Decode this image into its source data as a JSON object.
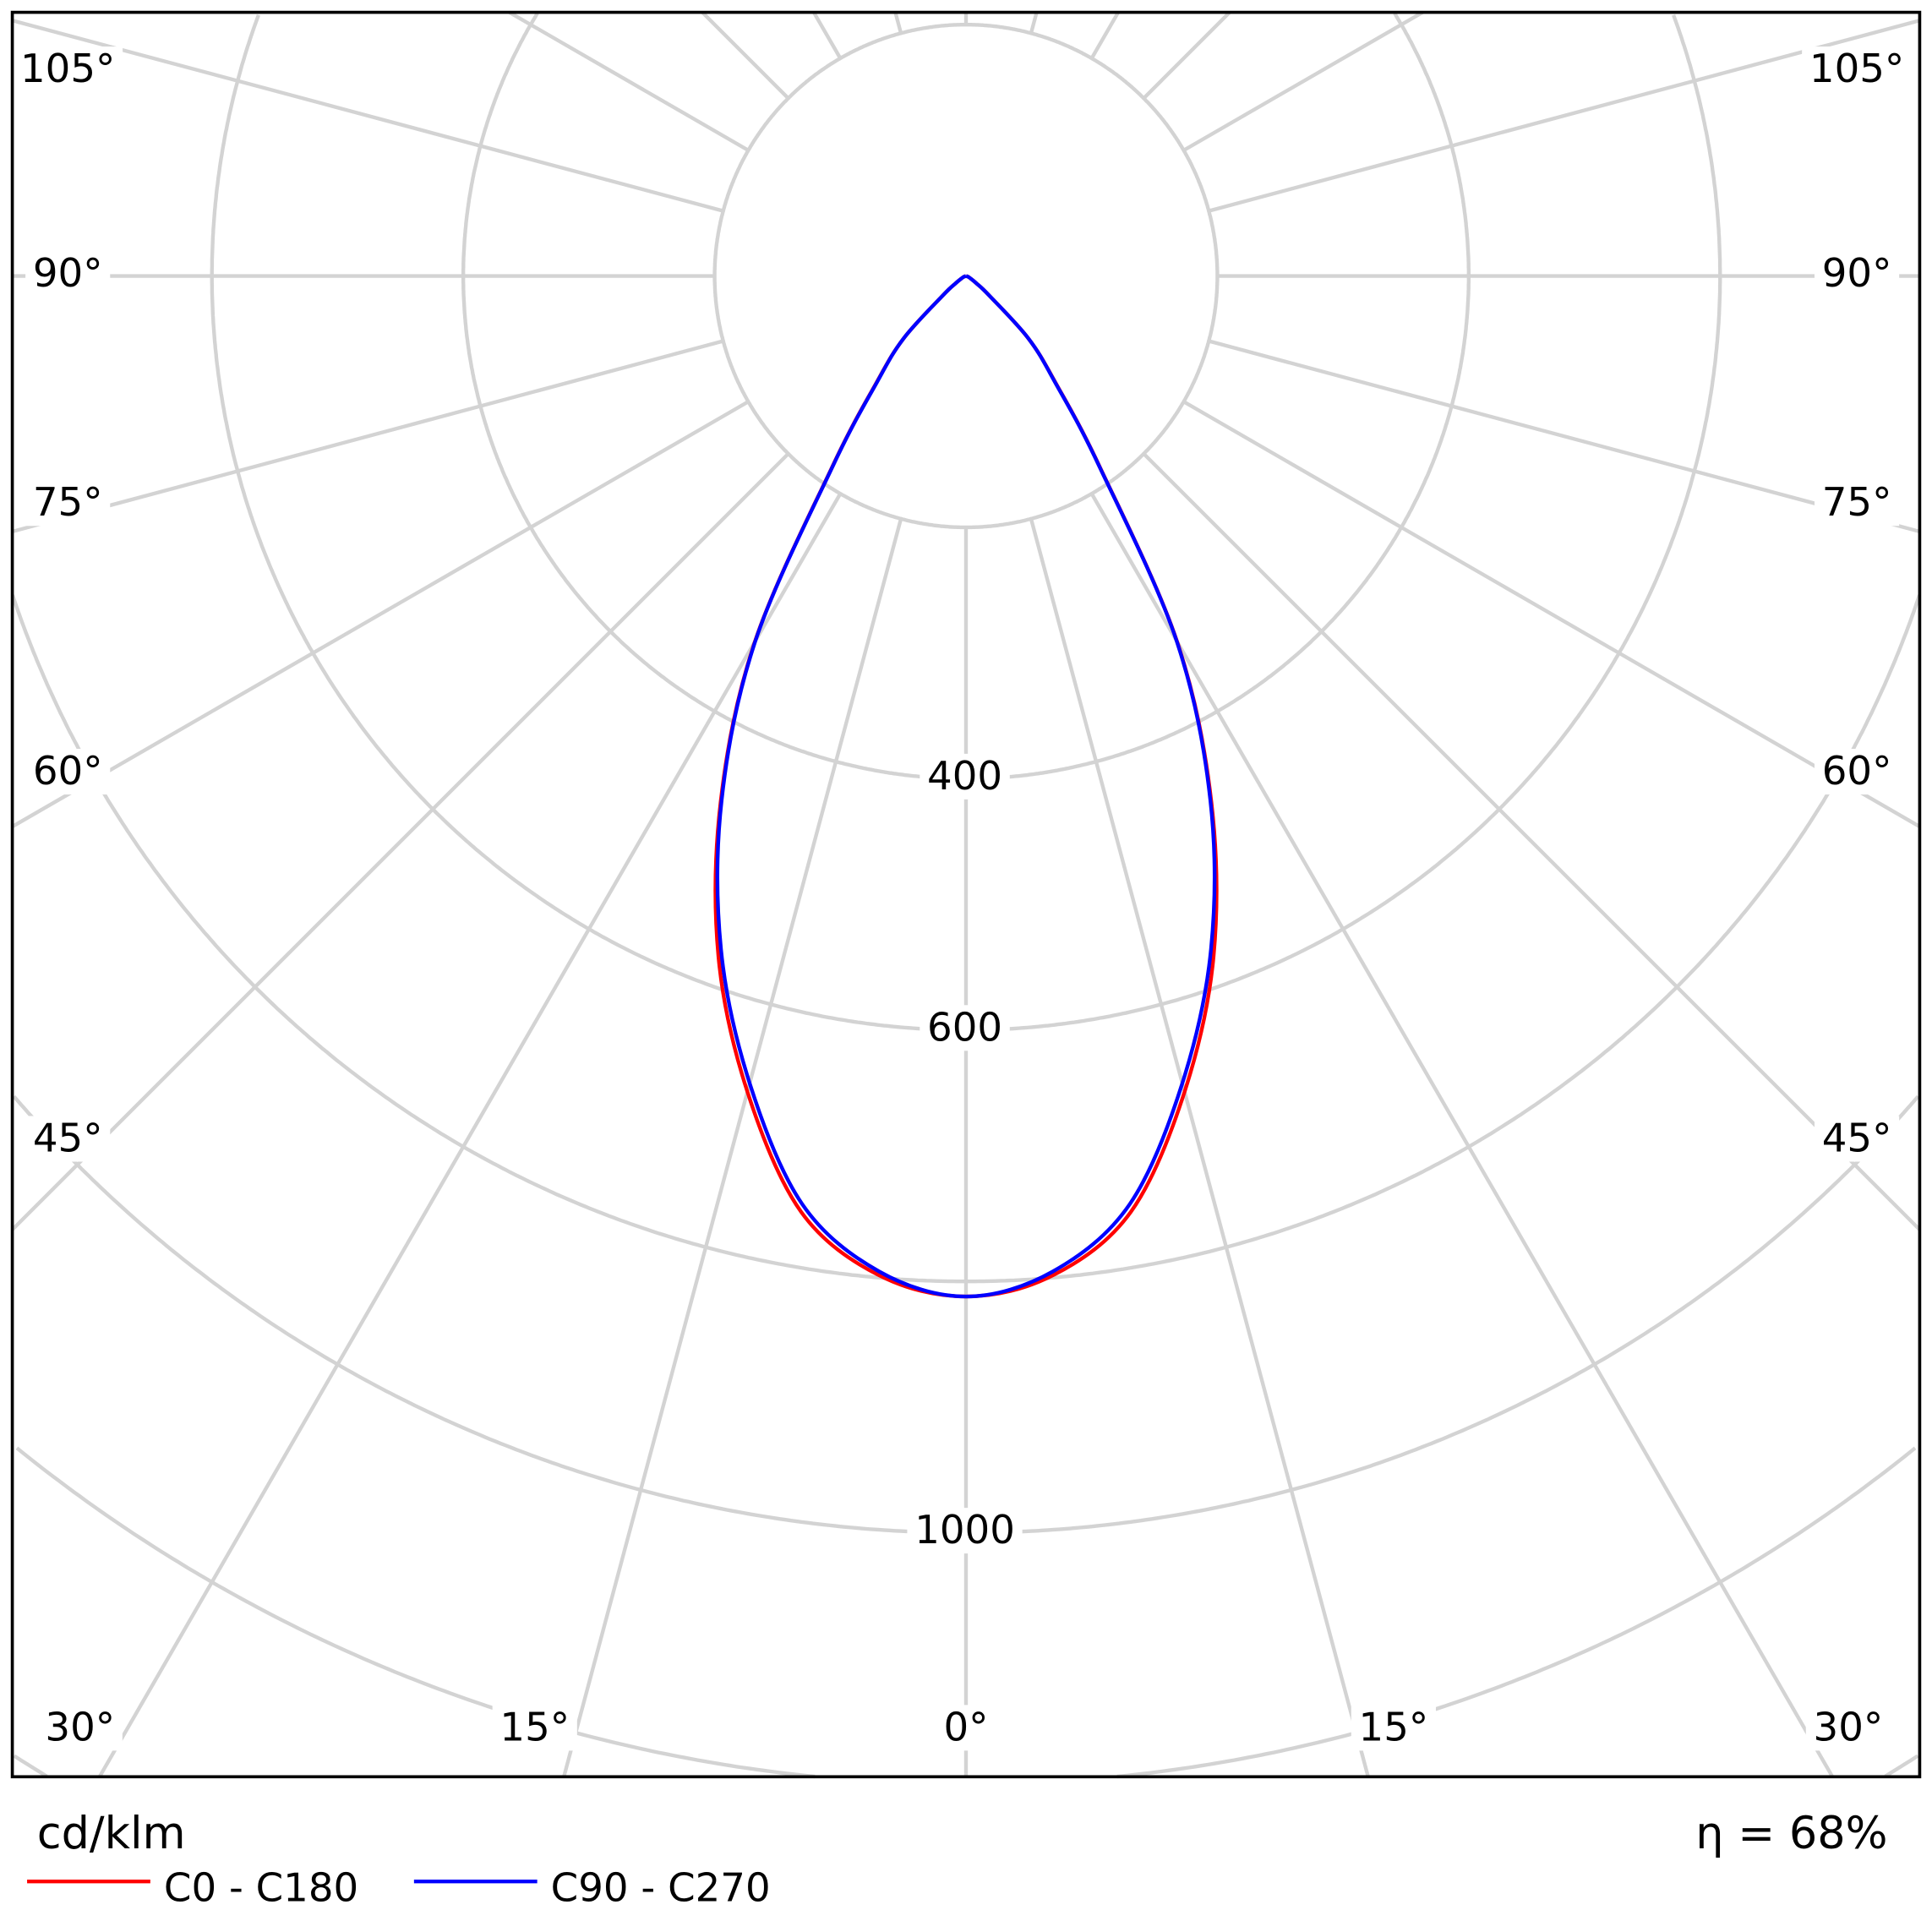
{
  "chart_data": {
    "type": "polar-line",
    "title": "",
    "unit_label": "cd/klm",
    "efficiency_label": "η = 68%",
    "efficiency_percent": 68,
    "radial_ticks": [
      200,
      400,
      600,
      800,
      1000,
      1200,
      1400,
      1600,
      1800,
      2000
    ],
    "radial_tick_labels": [
      "400",
      "600",
      "1000"
    ],
    "radial_tick_label_values": [
      400,
      600,
      1000
    ],
    "angle_labels": {
      "left": [
        "105°",
        "90°",
        "75°",
        "60°",
        "45°",
        "30°",
        "15°"
      ],
      "bottom_center": "0°",
      "right": [
        "15°",
        "30°",
        "45°",
        "60°",
        "75°",
        "90°",
        "105°"
      ]
    },
    "angle_label_values": {
      "left": [
        105,
        90,
        75,
        60,
        45,
        30,
        15
      ],
      "right": [
        15,
        30,
        45,
        60,
        75,
        90,
        105
      ]
    },
    "grid": true,
    "angle_step_deg": 15,
    "legend_position": "bottom-left",
    "series": [
      {
        "name": "C0 - C180",
        "color": "#ff0000",
        "angles": [
          0,
          5,
          10,
          15,
          20,
          25,
          30,
          35,
          40,
          45,
          50,
          55,
          60,
          70,
          90
        ],
        "values": [
          812,
          798,
          756,
          672,
          576,
          462,
          336,
          186,
          111,
          70,
          24,
          10,
          5,
          2,
          0
        ]
      },
      {
        "name": "C90 - C270",
        "color": "#0000ff",
        "angles": [
          0,
          5,
          10,
          15,
          20,
          25,
          30,
          35,
          40,
          45,
          50,
          55,
          60,
          70,
          90
        ],
        "values": [
          812,
          795,
          750,
          665,
          570,
          460,
          335,
          185,
          110,
          70,
          24,
          10,
          5,
          2,
          0
        ]
      }
    ],
    "grid_color": "#d3d3d3"
  }
}
